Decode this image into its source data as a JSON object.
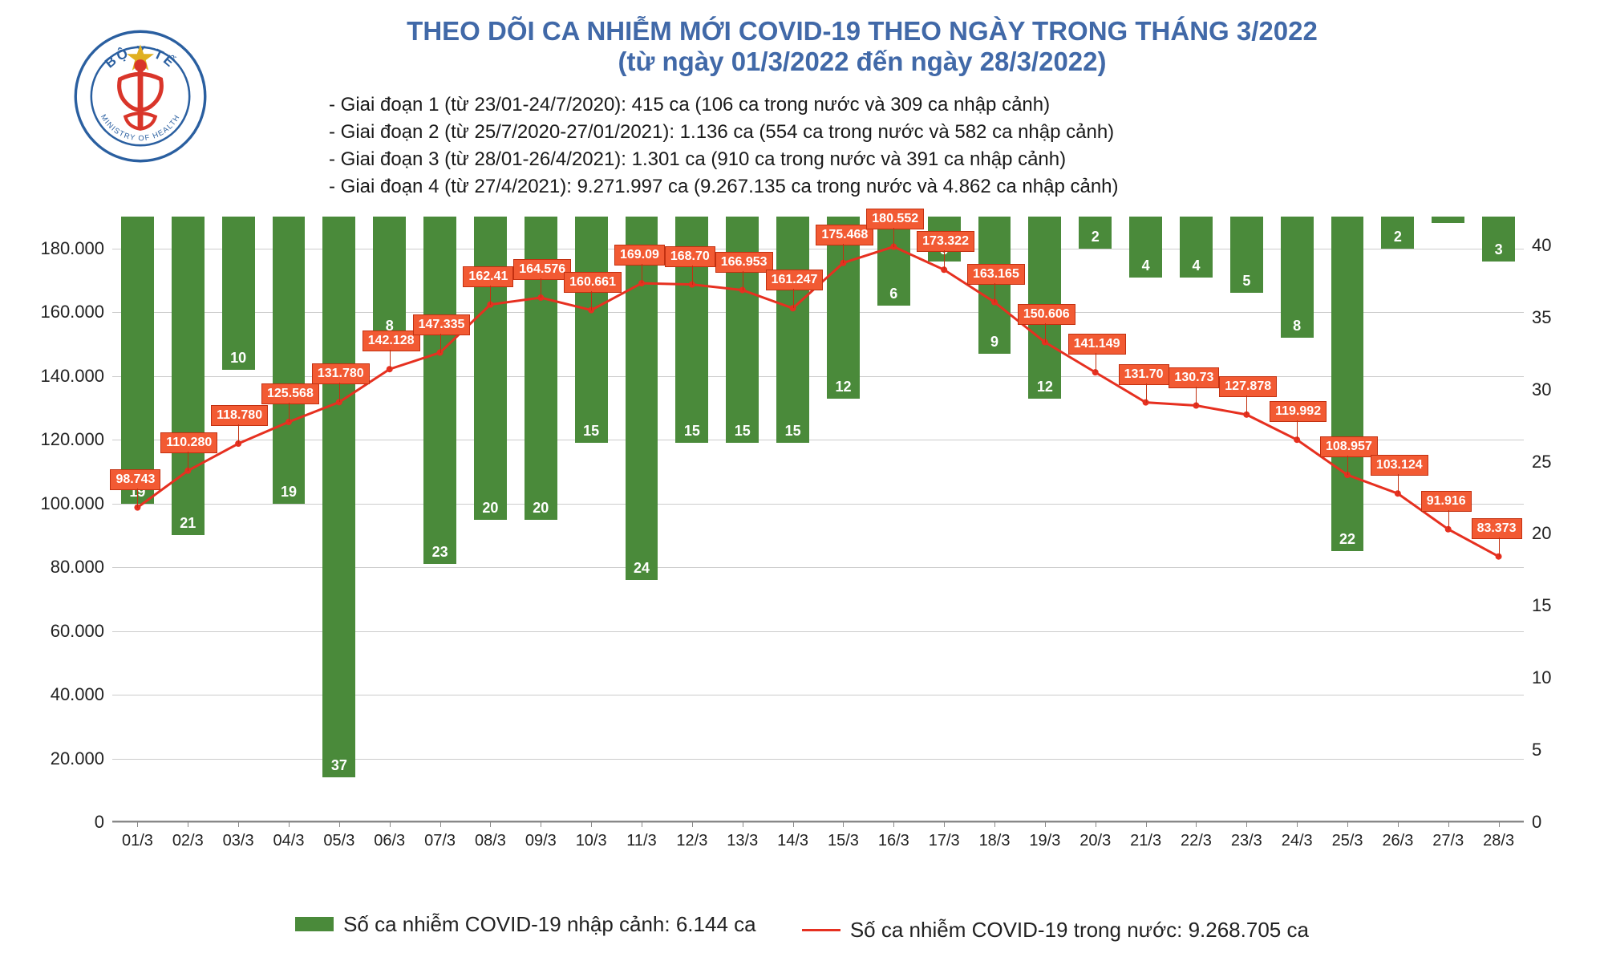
{
  "title_line1": "THEO DÕI CA NHIỄM MỚI COVID-19 THEO NGÀY TRONG THÁNG 3/2022",
  "title_line2": "(từ ngày 01/3/2022 đến ngày 28/3/2022)",
  "title_color": "#4169a8",
  "sub_lines": [
    "- Giai đoạn 1 (từ 23/01-24/7/2020): 415 ca (106 ca trong nước và 309 ca nhập cảnh)",
    "- Giai đoạn 2 (từ 25/7/2020-27/01/2021): 1.136 ca (554 ca trong nước và 582 ca nhập cảnh)",
    "- Giai đoạn 3 (từ 28/01-26/4/2021): 1.301 ca (910 ca trong nước và 391 ca nhập cảnh)",
    "- Giai đoạn 4 (từ 27/4/2021): 9.271.997 ca (9.267.135 ca trong nước và 4.862 ca nhập cảnh)"
  ],
  "chart": {
    "categories": [
      "01/3",
      "02/3",
      "03/3",
      "04/3",
      "05/3",
      "06/3",
      "07/3",
      "08/3",
      "09/3",
      "10/3",
      "11/3",
      "12/3",
      "13/3",
      "14/3",
      "15/3",
      "16/3",
      "17/3",
      "18/3",
      "19/3",
      "20/3",
      "21/3",
      "22/3",
      "23/3",
      "24/3",
      "25/3",
      "26/3",
      "27/3",
      "28/3"
    ],
    "bars": {
      "values": [
        90000,
        100000,
        48000,
        90000,
        176000,
        38000,
        109000,
        95000,
        95000,
        71000,
        114000,
        71000,
        71000,
        71000,
        57000,
        28000,
        14000,
        43000,
        57000,
        10000,
        19000,
        19000,
        24000,
        38000,
        105000,
        10000,
        2000,
        14000
      ],
      "labels": [
        "19",
        "21",
        "10",
        "19",
        "37",
        "8",
        "23",
        "20",
        "20",
        "15",
        "24",
        "15",
        "15",
        "15",
        "12",
        "6",
        "3",
        "9",
        "12",
        "2",
        "4",
        "4",
        "5",
        "8",
        "22",
        "2",
        "-",
        "3"
      ],
      "color": "#4a8a3a",
      "label_color": "#ffffff"
    },
    "line": {
      "values": [
        98743,
        110280,
        118780,
        125568,
        131780,
        142128,
        147335,
        162413,
        164576,
        160661,
        169090,
        168700,
        166953,
        161247,
        175468,
        180552,
        173322,
        163165,
        150606,
        141149,
        131700,
        130730,
        127878,
        119992,
        108957,
        103124,
        91916,
        83373
      ],
      "labels": [
        "98.743",
        "110.280",
        "118.780",
        "125.568",
        "131.780",
        "142.128",
        "147.335",
        "162.41",
        "164.576",
        "160.661",
        "169.09",
        "168.70",
        "166.953",
        "161.247",
        "175.468",
        "180.552",
        "173.322",
        "163.165",
        "150.606",
        "141.149",
        "131.70",
        "130.73",
        "127.878",
        "119.992",
        "108.957",
        "103.124",
        "91.916",
        "83.373"
      ],
      "color": "#e63020",
      "label_bg": "#f25a33",
      "label_border": "#c23010",
      "line_width": 3
    },
    "y_left": {
      "max": 190000,
      "ticks": [
        0,
        20000,
        40000,
        60000,
        80000,
        100000,
        120000,
        140000,
        160000,
        180000
      ],
      "tick_labels": [
        "0",
        "20.000",
        "40.000",
        "60.000",
        "80.000",
        "100.000",
        "120.000",
        "140.000",
        "160.000",
        "180.000"
      ]
    },
    "y_right": {
      "max": 42,
      "ticks": [
        0,
        5,
        10,
        15,
        20,
        25,
        30,
        35,
        40
      ],
      "tick_labels": [
        "0",
        "5",
        "10",
        "15",
        "20",
        "25",
        "30",
        "35",
        "40"
      ]
    },
    "grid_color": "#cccccc",
    "background_color": "#ffffff"
  },
  "legend": {
    "bar_label": "Số ca nhiễm COVID-19 nhập cảnh: 6.144 ca",
    "line_label": "Số ca nhiễm COVID-19 trong nước: 9.268.705 ca"
  },
  "logo": {
    "outer_color": "#2a5fa0",
    "star_color": "#e0b020",
    "staff_color": "#d9352a",
    "text_top": "BỘ Y TẾ",
    "text_bottom": "MINISTRY OF HEALTH"
  }
}
